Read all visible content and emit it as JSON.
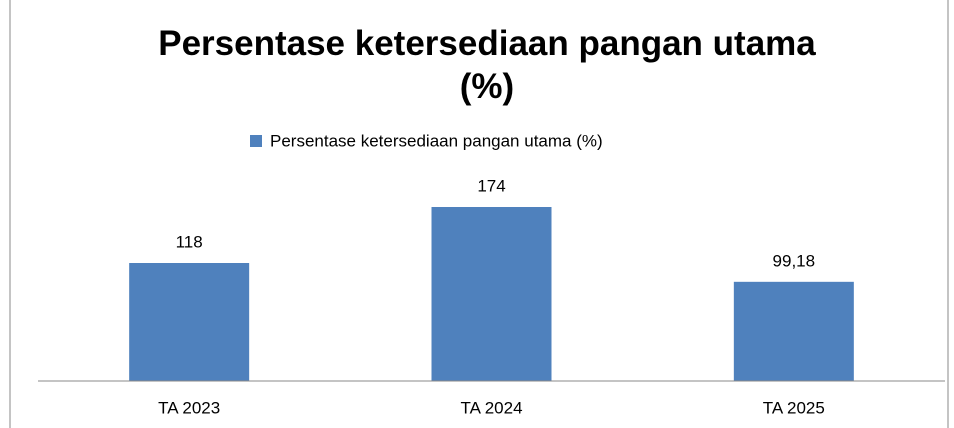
{
  "chart_data": {
    "type": "bar",
    "title": "Persentase ketersediaan pangan utama (%)",
    "categories": [
      "TA 2023",
      "TA  2024",
      "TA  2025"
    ],
    "series": [
      {
        "name": "Persentase ketersediaan pangan utama (%)",
        "color": "#4f81bd",
        "values": [
          118,
          174,
          99.18
        ],
        "value_labels": [
          "118",
          "174",
          "99,18"
        ]
      }
    ],
    "ylim": [
      0,
      200
    ],
    "legend": "top"
  }
}
